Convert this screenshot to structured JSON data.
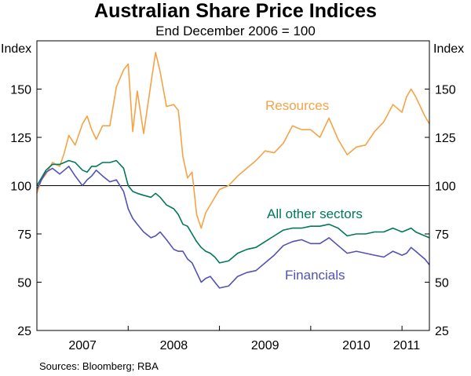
{
  "chart_data": {
    "type": "line",
    "title": "Australian Share Price Indices",
    "subtitle": "End December 2006 = 100",
    "ylabel_left": "Index",
    "ylabel_right": "Index",
    "ylim": [
      25,
      175
    ],
    "yticks": [
      25,
      50,
      75,
      100,
      125,
      150
    ],
    "xlim": [
      2007.0,
      2011.3
    ],
    "xtick_labels": [
      {
        "label": "2007",
        "x": 2007.5
      },
      {
        "label": "2008",
        "x": 2008.5
      },
      {
        "label": "2009",
        "x": 2009.5
      },
      {
        "label": "2010",
        "x": 2010.5
      },
      {
        "label": "2011",
        "x": 2011.05
      }
    ],
    "xtick_marks": [
      2008,
      2009,
      2010,
      2011
    ],
    "reference_line": 100,
    "series": [
      {
        "name": "Resources",
        "color": "#f5a347",
        "x": [
          2007.0,
          2007.05,
          2007.1,
          2007.17,
          2007.25,
          2007.3,
          2007.35,
          2007.42,
          2007.5,
          2007.55,
          2007.6,
          2007.65,
          2007.72,
          2007.8,
          2007.87,
          2007.95,
          2008.0,
          2008.05,
          2008.1,
          2008.17,
          2008.25,
          2008.3,
          2008.35,
          2008.42,
          2008.5,
          2008.55,
          2008.6,
          2008.65,
          2008.7,
          2008.75,
          2008.8,
          2008.85,
          2008.9,
          2008.95,
          2009.0,
          2009.1,
          2009.2,
          2009.3,
          2009.4,
          2009.5,
          2009.6,
          2009.7,
          2009.8,
          2009.9,
          2010.0,
          2010.1,
          2010.2,
          2010.3,
          2010.4,
          2010.5,
          2010.6,
          2010.7,
          2010.8,
          2010.9,
          2011.0,
          2011.05,
          2011.1,
          2011.15,
          2011.2,
          2011.25,
          2011.3
        ],
        "values": [
          96,
          103,
          106,
          112,
          110,
          117,
          126,
          121,
          132,
          136,
          129,
          124,
          131,
          131,
          151,
          160,
          163,
          128,
          149,
          127,
          153,
          169,
          159,
          141,
          142,
          139,
          115,
          104,
          107,
          85,
          78,
          86,
          90,
          94,
          98,
          100,
          105,
          109,
          113,
          118,
          117,
          122,
          131,
          129,
          129,
          125,
          135,
          124,
          116,
          120,
          121,
          128,
          133,
          142,
          138,
          146,
          150,
          146,
          141,
          136,
          132
        ]
      },
      {
        "name": "All other sectors",
        "color": "#00785a",
        "x": [
          2007.0,
          2007.05,
          2007.1,
          2007.17,
          2007.25,
          2007.3,
          2007.35,
          2007.42,
          2007.5,
          2007.55,
          2007.6,
          2007.65,
          2007.72,
          2007.8,
          2007.87,
          2007.95,
          2008.0,
          2008.05,
          2008.1,
          2008.17,
          2008.25,
          2008.3,
          2008.35,
          2008.42,
          2008.5,
          2008.55,
          2008.6,
          2008.65,
          2008.7,
          2008.75,
          2008.8,
          2008.85,
          2008.9,
          2008.95,
          2009.0,
          2009.1,
          2009.2,
          2009.3,
          2009.4,
          2009.5,
          2009.6,
          2009.7,
          2009.8,
          2009.9,
          2010.0,
          2010.1,
          2010.2,
          2010.3,
          2010.4,
          2010.5,
          2010.6,
          2010.7,
          2010.8,
          2010.9,
          2011.0,
          2011.05,
          2011.1,
          2011.15,
          2011.2,
          2011.25,
          2011.3
        ],
        "values": [
          100,
          104,
          108,
          111,
          111,
          112,
          113,
          112,
          108,
          107,
          110,
          110,
          112,
          112,
          113,
          109,
          100,
          97,
          96,
          95,
          94,
          96,
          94,
          90,
          88,
          85,
          80,
          79,
          75,
          71,
          68,
          66,
          65,
          63,
          60,
          61,
          65,
          67,
          68,
          71,
          74,
          77,
          78,
          78,
          79,
          79,
          80,
          78,
          74,
          75,
          75,
          76,
          76,
          78,
          76,
          77,
          78,
          76,
          75,
          74,
          73
        ]
      },
      {
        "name": "Financials",
        "color": "#5252b4",
        "x": [
          2007.0,
          2007.05,
          2007.1,
          2007.17,
          2007.25,
          2007.3,
          2007.35,
          2007.42,
          2007.5,
          2007.55,
          2007.6,
          2007.65,
          2007.72,
          2007.8,
          2007.87,
          2007.95,
          2008.0,
          2008.05,
          2008.1,
          2008.17,
          2008.25,
          2008.3,
          2008.35,
          2008.42,
          2008.5,
          2008.55,
          2008.6,
          2008.65,
          2008.7,
          2008.75,
          2008.8,
          2008.85,
          2008.9,
          2008.95,
          2009.0,
          2009.1,
          2009.2,
          2009.3,
          2009.4,
          2009.5,
          2009.6,
          2009.7,
          2009.8,
          2009.9,
          2010.0,
          2010.1,
          2010.2,
          2010.3,
          2010.4,
          2010.5,
          2010.6,
          2010.7,
          2010.8,
          2010.9,
          2011.0,
          2011.05,
          2011.1,
          2011.15,
          2011.2,
          2011.25,
          2011.3
        ],
        "values": [
          98,
          103,
          107,
          109,
          106,
          108,
          110,
          105,
          100,
          103,
          105,
          108,
          105,
          102,
          103,
          97,
          88,
          83,
          80,
          76,
          73,
          74,
          76,
          72,
          67,
          66,
          66,
          62,
          60,
          55,
          50,
          52,
          53,
          50,
          47,
          48,
          53,
          55,
          56,
          60,
          64,
          69,
          71,
          72,
          70,
          70,
          73,
          69,
          65,
          66,
          65,
          64,
          63,
          66,
          64,
          65,
          68,
          66,
          64,
          62,
          59
        ]
      }
    ],
    "annotations": [
      {
        "text": "Resources",
        "series": "Resources"
      },
      {
        "text": "All other sectors",
        "series": "All other sectors"
      },
      {
        "text": "Financials",
        "series": "Financials"
      }
    ],
    "source": "Sources: Bloomberg; RBA"
  }
}
